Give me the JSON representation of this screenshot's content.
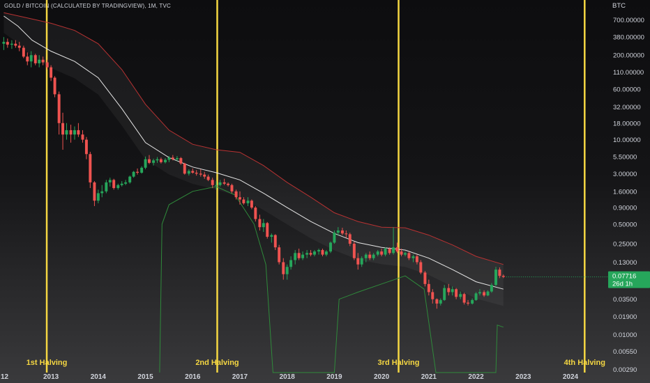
{
  "header": {
    "symbol_title": "GOLD / BITCOIN (CALCULATED BY TRADINGVIEW), 1M, TVC"
  },
  "price_axis": {
    "unit": "BTC",
    "tick_labels": [
      "700.00000",
      "380.00000",
      "200.00000",
      "110.00000",
      "60.00000",
      "32.00000",
      "18.00000",
      "10.00000",
      "5.50000",
      "3.00000",
      "1.60000",
      "0.90000",
      "0.50000",
      "0.25000",
      "0.13000",
      "0.03500",
      "0.01900",
      "0.01000",
      "0.00550",
      "0.00290"
    ],
    "tick_values": [
      700,
      380,
      200,
      110,
      60,
      32,
      18,
      10,
      5.5,
      3,
      1.6,
      0.9,
      0.5,
      0.25,
      0.13,
      0.035,
      0.019,
      0.01,
      0.0055,
      0.0029
    ],
    "last_price_label": "0.07716",
    "countdown_label": "26d 1h",
    "last_price_color": "#26a65b"
  },
  "time_axis": {
    "labels": [
      "12",
      "2013",
      "2014",
      "2015",
      "2016",
      "2017",
      "2018",
      "2019",
      "2020",
      "2021",
      "2022",
      "2023",
      "2024"
    ],
    "label_years": [
      2012.0,
      2013.0,
      2014.0,
      2015.0,
      2016.0,
      2017.0,
      2018.0,
      2019.0,
      2020.0,
      2021.0,
      2022.0,
      2023.0,
      2024.0
    ]
  },
  "halvings": [
    {
      "label": "1st Halving",
      "year": 2012.91
    },
    {
      "label": "2nd Halving",
      "year": 2016.52
    },
    {
      "label": "3rd Halving",
      "year": 2020.36
    },
    {
      "label": "4th Halving",
      "year": 2024.3
    }
  ],
  "colors": {
    "up": "#26a65b",
    "down": "#ef5350",
    "halving_line": "#f5d742",
    "basis": "#e6e6e6",
    "upper_band": "#b83232",
    "lower_band": "#2f8a3b"
  },
  "chart_data": {
    "type": "candlestick",
    "title": "GOLD / BITCOIN (CALCULATED BY TRADINGVIEW), 1M, TVC",
    "y_scale": "log",
    "ylim": [
      0.0026,
      1000
    ],
    "xlim": [
      2011.92,
      2024.65
    ],
    "candles": [
      {
        "t": 2012.0,
        "o": 300,
        "h": 380,
        "l": 240,
        "c": 320
      },
      {
        "t": 2012.08,
        "o": 320,
        "h": 360,
        "l": 260,
        "c": 290
      },
      {
        "t": 2012.17,
        "o": 290,
        "h": 340,
        "l": 250,
        "c": 300
      },
      {
        "t": 2012.25,
        "o": 300,
        "h": 340,
        "l": 260,
        "c": 280
      },
      {
        "t": 2012.33,
        "o": 280,
        "h": 320,
        "l": 230,
        "c": 260
      },
      {
        "t": 2012.42,
        "o": 260,
        "h": 280,
        "l": 180,
        "c": 190
      },
      {
        "t": 2012.5,
        "o": 190,
        "h": 220,
        "l": 140,
        "c": 160
      },
      {
        "t": 2012.58,
        "o": 160,
        "h": 230,
        "l": 130,
        "c": 200
      },
      {
        "t": 2012.67,
        "o": 200,
        "h": 210,
        "l": 140,
        "c": 150
      },
      {
        "t": 2012.75,
        "o": 150,
        "h": 200,
        "l": 130,
        "c": 170
      },
      {
        "t": 2012.83,
        "o": 170,
        "h": 190,
        "l": 140,
        "c": 155
      },
      {
        "t": 2012.92,
        "o": 155,
        "h": 170,
        "l": 120,
        "c": 130
      },
      {
        "t": 2013.0,
        "o": 130,
        "h": 140,
        "l": 80,
        "c": 90
      },
      {
        "t": 2013.08,
        "o": 90,
        "h": 95,
        "l": 45,
        "c": 50
      },
      {
        "t": 2013.17,
        "o": 50,
        "h": 55,
        "l": 12,
        "c": 18
      },
      {
        "t": 2013.25,
        "o": 18,
        "h": 26,
        "l": 7,
        "c": 12
      },
      {
        "t": 2013.33,
        "o": 12,
        "h": 18,
        "l": 10,
        "c": 14
      },
      {
        "t": 2013.42,
        "o": 14,
        "h": 17,
        "l": 9,
        "c": 12
      },
      {
        "t": 2013.5,
        "o": 12,
        "h": 16,
        "l": 10,
        "c": 14
      },
      {
        "t": 2013.58,
        "o": 14,
        "h": 18,
        "l": 11,
        "c": 12
      },
      {
        "t": 2013.67,
        "o": 12,
        "h": 14,
        "l": 9,
        "c": 10
      },
      {
        "t": 2013.75,
        "o": 10,
        "h": 11,
        "l": 5,
        "c": 6
      },
      {
        "t": 2013.83,
        "o": 6,
        "h": 6.5,
        "l": 1.8,
        "c": 2.2
      },
      {
        "t": 2013.92,
        "o": 2.2,
        "h": 2.3,
        "l": 0.95,
        "c": 1.15
      },
      {
        "t": 2014.0,
        "o": 1.15,
        "h": 1.7,
        "l": 1.05,
        "c": 1.5
      },
      {
        "t": 2014.08,
        "o": 1.5,
        "h": 2.0,
        "l": 1.3,
        "c": 1.6
      },
      {
        "t": 2014.17,
        "o": 1.6,
        "h": 2.4,
        "l": 1.5,
        "c": 2.2
      },
      {
        "t": 2014.25,
        "o": 2.2,
        "h": 2.6,
        "l": 1.9,
        "c": 2.4
      },
      {
        "t": 2014.33,
        "o": 2.4,
        "h": 2.5,
        "l": 1.7,
        "c": 1.8
      },
      {
        "t": 2014.42,
        "o": 1.8,
        "h": 2.1,
        "l": 1.7,
        "c": 2.0
      },
      {
        "t": 2014.5,
        "o": 2.0,
        "h": 2.3,
        "l": 1.9,
        "c": 2.1
      },
      {
        "t": 2014.58,
        "o": 2.1,
        "h": 2.4,
        "l": 2.0,
        "c": 2.2
      },
      {
        "t": 2014.67,
        "o": 2.2,
        "h": 2.8,
        "l": 2.1,
        "c": 2.7
      },
      {
        "t": 2014.75,
        "o": 2.7,
        "h": 3.3,
        "l": 2.6,
        "c": 3.2
      },
      {
        "t": 2014.83,
        "o": 3.2,
        "h": 3.6,
        "l": 2.9,
        "c": 3.1
      },
      {
        "t": 2014.92,
        "o": 3.1,
        "h": 3.9,
        "l": 3.0,
        "c": 3.7
      },
      {
        "t": 2015.0,
        "o": 3.7,
        "h": 5.5,
        "l": 3.5,
        "c": 5.0
      },
      {
        "t": 2015.08,
        "o": 5.0,
        "h": 5.8,
        "l": 4.2,
        "c": 4.4
      },
      {
        "t": 2015.17,
        "o": 4.4,
        "h": 5.1,
        "l": 4.0,
        "c": 4.8
      },
      {
        "t": 2015.25,
        "o": 4.8,
        "h": 5.4,
        "l": 4.4,
        "c": 5.0
      },
      {
        "t": 2015.33,
        "o": 5.0,
        "h": 5.3,
        "l": 4.3,
        "c": 4.5
      },
      {
        "t": 2015.42,
        "o": 4.5,
        "h": 5.2,
        "l": 4.3,
        "c": 4.9
      },
      {
        "t": 2015.5,
        "o": 4.9,
        "h": 5.6,
        "l": 4.5,
        "c": 5.3
      },
      {
        "t": 2015.58,
        "o": 5.3,
        "h": 5.8,
        "l": 4.8,
        "c": 5.0
      },
      {
        "t": 2015.67,
        "o": 5.0,
        "h": 5.6,
        "l": 4.7,
        "c": 5.2
      },
      {
        "t": 2015.75,
        "o": 5.2,
        "h": 5.4,
        "l": 4.1,
        "c": 4.3
      },
      {
        "t": 2015.83,
        "o": 4.3,
        "h": 4.4,
        "l": 2.9,
        "c": 3.0
      },
      {
        "t": 2015.92,
        "o": 3.0,
        "h": 3.5,
        "l": 2.8,
        "c": 3.3
      },
      {
        "t": 2016.0,
        "o": 3.3,
        "h": 3.6,
        "l": 3.0,
        "c": 3.1
      },
      {
        "t": 2016.08,
        "o": 3.1,
        "h": 3.4,
        "l": 2.8,
        "c": 3.0
      },
      {
        "t": 2016.17,
        "o": 3.0,
        "h": 3.5,
        "l": 2.7,
        "c": 2.9
      },
      {
        "t": 2016.25,
        "o": 2.9,
        "h": 3.2,
        "l": 2.5,
        "c": 2.7
      },
      {
        "t": 2016.33,
        "o": 2.7,
        "h": 2.9,
        "l": 2.3,
        "c": 2.4
      },
      {
        "t": 2016.42,
        "o": 2.4,
        "h": 2.6,
        "l": 1.8,
        "c": 2.0
      },
      {
        "t": 2016.5,
        "o": 2.0,
        "h": 2.3,
        "l": 1.7,
        "c": 2.0
      },
      {
        "t": 2016.58,
        "o": 2.0,
        "h": 2.4,
        "l": 1.9,
        "c": 2.2
      },
      {
        "t": 2016.67,
        "o": 2.2,
        "h": 2.5,
        "l": 2.0,
        "c": 2.1
      },
      {
        "t": 2016.75,
        "o": 2.1,
        "h": 2.2,
        "l": 1.9,
        "c": 2.0
      },
      {
        "t": 2016.83,
        "o": 2.0,
        "h": 2.1,
        "l": 1.5,
        "c": 1.6
      },
      {
        "t": 2016.92,
        "o": 1.6,
        "h": 1.7,
        "l": 1.2,
        "c": 1.3
      },
      {
        "t": 2017.0,
        "o": 1.3,
        "h": 1.6,
        "l": 1.0,
        "c": 1.2
      },
      {
        "t": 2017.08,
        "o": 1.2,
        "h": 1.3,
        "l": 1.0,
        "c": 1.05
      },
      {
        "t": 2017.17,
        "o": 1.05,
        "h": 1.3,
        "l": 0.95,
        "c": 1.15
      },
      {
        "t": 2017.25,
        "o": 1.15,
        "h": 1.2,
        "l": 0.85,
        "c": 0.9
      },
      {
        "t": 2017.33,
        "o": 0.9,
        "h": 0.95,
        "l": 0.55,
        "c": 0.6
      },
      {
        "t": 2017.42,
        "o": 0.6,
        "h": 0.7,
        "l": 0.4,
        "c": 0.45
      },
      {
        "t": 2017.5,
        "o": 0.45,
        "h": 0.6,
        "l": 0.38,
        "c": 0.52
      },
      {
        "t": 2017.58,
        "o": 0.52,
        "h": 0.54,
        "l": 0.3,
        "c": 0.32
      },
      {
        "t": 2017.67,
        "o": 0.32,
        "h": 0.36,
        "l": 0.26,
        "c": 0.34
      },
      {
        "t": 2017.75,
        "o": 0.34,
        "h": 0.35,
        "l": 0.2,
        "c": 0.22
      },
      {
        "t": 2017.83,
        "o": 0.22,
        "h": 0.24,
        "l": 0.12,
        "c": 0.13
      },
      {
        "t": 2017.92,
        "o": 0.13,
        "h": 0.15,
        "l": 0.07,
        "c": 0.085
      },
      {
        "t": 2018.0,
        "o": 0.085,
        "h": 0.12,
        "l": 0.07,
        "c": 0.11
      },
      {
        "t": 2018.08,
        "o": 0.11,
        "h": 0.16,
        "l": 0.1,
        "c": 0.14
      },
      {
        "t": 2018.17,
        "o": 0.14,
        "h": 0.2,
        "l": 0.12,
        "c": 0.18
      },
      {
        "t": 2018.25,
        "o": 0.18,
        "h": 0.21,
        "l": 0.14,
        "c": 0.15
      },
      {
        "t": 2018.33,
        "o": 0.15,
        "h": 0.19,
        "l": 0.14,
        "c": 0.17
      },
      {
        "t": 2018.42,
        "o": 0.17,
        "h": 0.2,
        "l": 0.15,
        "c": 0.18
      },
      {
        "t": 2018.5,
        "o": 0.18,
        "h": 0.2,
        "l": 0.16,
        "c": 0.17
      },
      {
        "t": 2018.58,
        "o": 0.17,
        "h": 0.2,
        "l": 0.16,
        "c": 0.19
      },
      {
        "t": 2018.67,
        "o": 0.19,
        "h": 0.21,
        "l": 0.17,
        "c": 0.2
      },
      {
        "t": 2018.75,
        "o": 0.2,
        "h": 0.21,
        "l": 0.16,
        "c": 0.17
      },
      {
        "t": 2018.83,
        "o": 0.17,
        "h": 0.2,
        "l": 0.16,
        "c": 0.19
      },
      {
        "t": 2018.92,
        "o": 0.19,
        "h": 0.27,
        "l": 0.18,
        "c": 0.26
      },
      {
        "t": 2019.0,
        "o": 0.26,
        "h": 0.4,
        "l": 0.25,
        "c": 0.37
      },
      {
        "t": 2019.08,
        "o": 0.37,
        "h": 0.45,
        "l": 0.33,
        "c": 0.4
      },
      {
        "t": 2019.17,
        "o": 0.4,
        "h": 0.44,
        "l": 0.34,
        "c": 0.36
      },
      {
        "t": 2019.25,
        "o": 0.36,
        "h": 0.4,
        "l": 0.31,
        "c": 0.35
      },
      {
        "t": 2019.33,
        "o": 0.35,
        "h": 0.37,
        "l": 0.23,
        "c": 0.25
      },
      {
        "t": 2019.42,
        "o": 0.25,
        "h": 0.27,
        "l": 0.14,
        "c": 0.15
      },
      {
        "t": 2019.5,
        "o": 0.15,
        "h": 0.18,
        "l": 0.1,
        "c": 0.12
      },
      {
        "t": 2019.58,
        "o": 0.12,
        "h": 0.16,
        "l": 0.11,
        "c": 0.15
      },
      {
        "t": 2019.67,
        "o": 0.15,
        "h": 0.18,
        "l": 0.13,
        "c": 0.17
      },
      {
        "t": 2019.75,
        "o": 0.17,
        "h": 0.19,
        "l": 0.14,
        "c": 0.15
      },
      {
        "t": 2019.83,
        "o": 0.15,
        "h": 0.18,
        "l": 0.14,
        "c": 0.17
      },
      {
        "t": 2019.92,
        "o": 0.17,
        "h": 0.2,
        "l": 0.16,
        "c": 0.19
      },
      {
        "t": 2020.0,
        "o": 0.19,
        "h": 0.21,
        "l": 0.16,
        "c": 0.17
      },
      {
        "t": 2020.08,
        "o": 0.17,
        "h": 0.22,
        "l": 0.16,
        "c": 0.21
      },
      {
        "t": 2020.17,
        "o": 0.21,
        "h": 0.22,
        "l": 0.17,
        "c": 0.18
      },
      {
        "t": 2020.25,
        "o": 0.18,
        "h": 0.45,
        "l": 0.17,
        "c": 0.22
      },
      {
        "t": 2020.33,
        "o": 0.22,
        "h": 0.26,
        "l": 0.18,
        "c": 0.19
      },
      {
        "t": 2020.42,
        "o": 0.19,
        "h": 0.21,
        "l": 0.16,
        "c": 0.17
      },
      {
        "t": 2020.5,
        "o": 0.17,
        "h": 0.19,
        "l": 0.16,
        "c": 0.18
      },
      {
        "t": 2020.58,
        "o": 0.18,
        "h": 0.19,
        "l": 0.14,
        "c": 0.15
      },
      {
        "t": 2020.67,
        "o": 0.15,
        "h": 0.17,
        "l": 0.13,
        "c": 0.16
      },
      {
        "t": 2020.75,
        "o": 0.16,
        "h": 0.17,
        "l": 0.12,
        "c": 0.13
      },
      {
        "t": 2020.83,
        "o": 0.13,
        "h": 0.14,
        "l": 0.085,
        "c": 0.09
      },
      {
        "t": 2020.92,
        "o": 0.09,
        "h": 0.095,
        "l": 0.055,
        "c": 0.06
      },
      {
        "t": 2021.0,
        "o": 0.06,
        "h": 0.07,
        "l": 0.04,
        "c": 0.045
      },
      {
        "t": 2021.08,
        "o": 0.045,
        "h": 0.05,
        "l": 0.03,
        "c": 0.035
      },
      {
        "t": 2021.17,
        "o": 0.035,
        "h": 0.036,
        "l": 0.025,
        "c": 0.03
      },
      {
        "t": 2021.25,
        "o": 0.03,
        "h": 0.036,
        "l": 0.028,
        "c": 0.034
      },
      {
        "t": 2021.33,
        "o": 0.034,
        "h": 0.058,
        "l": 0.033,
        "c": 0.052
      },
      {
        "t": 2021.42,
        "o": 0.052,
        "h": 0.06,
        "l": 0.04,
        "c": 0.045
      },
      {
        "t": 2021.5,
        "o": 0.045,
        "h": 0.055,
        "l": 0.04,
        "c": 0.05
      },
      {
        "t": 2021.58,
        "o": 0.05,
        "h": 0.052,
        "l": 0.035,
        "c": 0.038
      },
      {
        "t": 2021.67,
        "o": 0.038,
        "h": 0.046,
        "l": 0.035,
        "c": 0.042
      },
      {
        "t": 2021.75,
        "o": 0.042,
        "h": 0.044,
        "l": 0.029,
        "c": 0.031
      },
      {
        "t": 2021.83,
        "o": 0.031,
        "h": 0.034,
        "l": 0.028,
        "c": 0.03
      },
      {
        "t": 2021.92,
        "o": 0.03,
        "h": 0.036,
        "l": 0.029,
        "c": 0.034
      },
      {
        "t": 2022.0,
        "o": 0.034,
        "h": 0.045,
        "l": 0.033,
        "c": 0.043
      },
      {
        "t": 2022.08,
        "o": 0.043,
        "h": 0.05,
        "l": 0.04,
        "c": 0.045
      },
      {
        "t": 2022.17,
        "o": 0.045,
        "h": 0.048,
        "l": 0.038,
        "c": 0.04
      },
      {
        "t": 2022.25,
        "o": 0.04,
        "h": 0.048,
        "l": 0.039,
        "c": 0.046
      },
      {
        "t": 2022.33,
        "o": 0.046,
        "h": 0.062,
        "l": 0.044,
        "c": 0.058
      },
      {
        "t": 2022.42,
        "o": 0.058,
        "h": 0.11,
        "l": 0.056,
        "c": 0.1
      },
      {
        "t": 2022.5,
        "o": 0.1,
        "h": 0.108,
        "l": 0.074,
        "c": 0.08
      },
      {
        "t": 2022.58,
        "o": 0.08,
        "h": 0.084,
        "l": 0.074,
        "c": 0.07716
      }
    ],
    "bollinger": {
      "upper": [
        [
          2012.0,
          900
        ],
        [
          2012.5,
          750
        ],
        [
          2013.0,
          620
        ],
        [
          2013.5,
          480
        ],
        [
          2014.0,
          300
        ],
        [
          2014.5,
          120
        ],
        [
          2015.0,
          35
        ],
        [
          2015.5,
          14
        ],
        [
          2016.0,
          8.5
        ],
        [
          2016.5,
          7.0
        ],
        [
          2017.0,
          6.4
        ],
        [
          2017.5,
          4.0
        ],
        [
          2018.0,
          2.2
        ],
        [
          2018.5,
          1.3
        ],
        [
          2019.0,
          0.75
        ],
        [
          2019.5,
          0.55
        ],
        [
          2020.0,
          0.45
        ],
        [
          2020.5,
          0.44
        ],
        [
          2021.0,
          0.34
        ],
        [
          2021.5,
          0.24
        ],
        [
          2022.0,
          0.16
        ],
        [
          2022.58,
          0.12
        ]
      ],
      "basis": [
        [
          2012.0,
          800
        ],
        [
          2012.3,
          560
        ],
        [
          2012.6,
          340
        ],
        [
          2013.0,
          230
        ],
        [
          2013.5,
          160
        ],
        [
          2014.0,
          90
        ],
        [
          2014.5,
          30
        ],
        [
          2015.0,
          9
        ],
        [
          2015.5,
          5.3
        ],
        [
          2016.0,
          3.8
        ],
        [
          2016.5,
          3.1
        ],
        [
          2017.0,
          2.4
        ],
        [
          2017.5,
          1.5
        ],
        [
          2018.0,
          0.9
        ],
        [
          2018.5,
          0.55
        ],
        [
          2019.0,
          0.36
        ],
        [
          2019.5,
          0.26
        ],
        [
          2020.0,
          0.22
        ],
        [
          2020.5,
          0.2
        ],
        [
          2021.0,
          0.15
        ],
        [
          2021.5,
          0.1
        ],
        [
          2022.0,
          0.065
        ],
        [
          2022.58,
          0.05
        ]
      ],
      "lower": [
        [
          2015.3,
          0.0026
        ],
        [
          2015.35,
          0.5
        ],
        [
          2015.5,
          1.0
        ],
        [
          2016.0,
          1.6
        ],
        [
          2016.5,
          1.9
        ],
        [
          2016.9,
          1.4
        ],
        [
          2017.3,
          0.5
        ],
        [
          2017.55,
          0.12
        ],
        [
          2017.7,
          0.0026
        ],
        [
          2019.0,
          0.0026
        ],
        [
          2019.1,
          0.035
        ],
        [
          2019.5,
          0.045
        ],
        [
          2020.0,
          0.06
        ],
        [
          2020.5,
          0.08
        ],
        [
          2020.9,
          0.05
        ],
        [
          2021.15,
          0.0026
        ],
        [
          2022.42,
          0.0026
        ],
        [
          2022.45,
          0.014
        ],
        [
          2022.58,
          0.013
        ]
      ]
    }
  }
}
